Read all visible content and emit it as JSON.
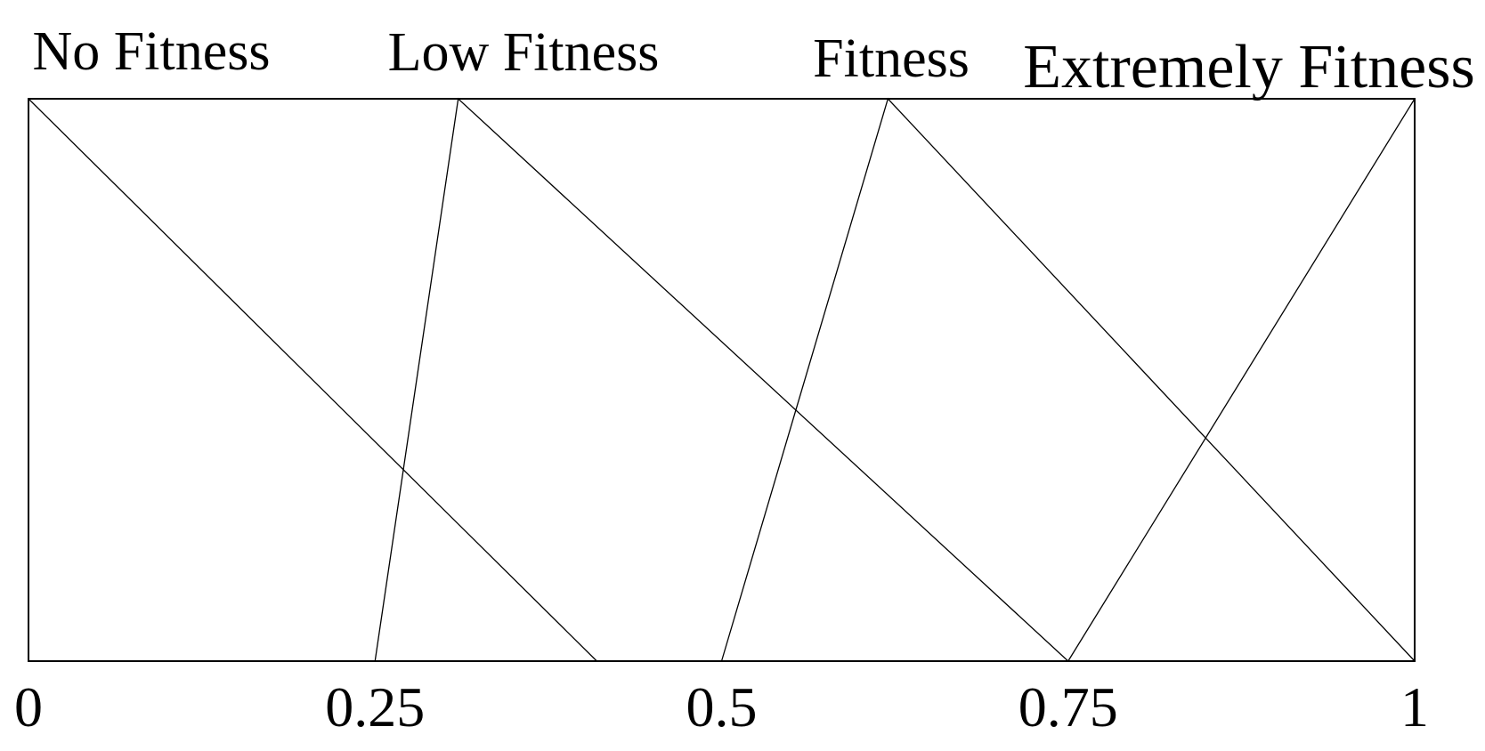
{
  "chart_data": {
    "type": "line",
    "title": "",
    "description_labels": {
      "top_left": "No Fitness",
      "top_mid_left": "Low Fitness",
      "top_mid_right": "Fitness",
      "top_right": "Extremely Fitness"
    },
    "x_axis": {
      "range": [
        0,
        1
      ],
      "ticks": [
        0,
        0.25,
        0.5,
        0.75,
        1
      ],
      "tick_labels": [
        "0",
        "0.25",
        "0.5",
        "0.75",
        "1"
      ]
    },
    "y_axis": {
      "range": [
        0,
        1
      ],
      "ticks": [],
      "tick_labels": []
    },
    "grid": false,
    "legend_position": "labels-above-plot",
    "line_color": "#000000",
    "series": [
      {
        "name": "No Fitness",
        "points": [
          [
            0,
            1
          ],
          [
            0.41,
            0
          ]
        ]
      },
      {
        "name": "Low Fitness",
        "points": [
          [
            0.25,
            0
          ],
          [
            0.31,
            1
          ],
          [
            0.75,
            0
          ]
        ]
      },
      {
        "name": "Fitness",
        "points": [
          [
            0.5,
            0
          ],
          [
            0.62,
            1
          ],
          [
            1,
            0
          ]
        ]
      },
      {
        "name": "Extremely Fitness",
        "points": [
          [
            0.75,
            0
          ],
          [
            1,
            1
          ]
        ]
      }
    ]
  }
}
